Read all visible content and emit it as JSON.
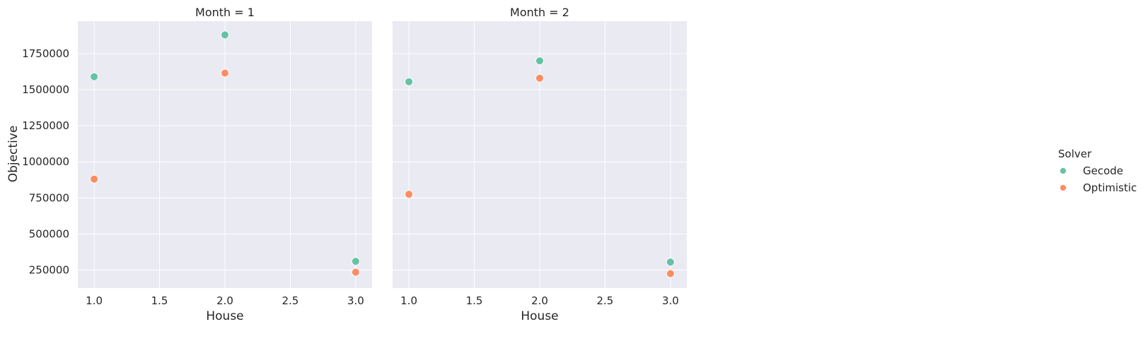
{
  "chart_data": {
    "type": "scatter",
    "facet_label": "Month",
    "xlabel": "House",
    "ylabel": "Objective",
    "xlim": [
      0.875,
      3.125
    ],
    "ylim": [
      125000,
      1975000
    ],
    "xticks": [
      "1.0",
      "1.5",
      "2.0",
      "2.5",
      "3.0"
    ],
    "xtick_values": [
      1.0,
      1.5,
      2.0,
      2.5,
      3.0
    ],
    "yticks": [
      "250000",
      "500000",
      "750000",
      "1000000",
      "1250000",
      "1500000",
      "1750000"
    ],
    "ytick_values": [
      250000,
      500000,
      750000,
      1000000,
      1250000,
      1500000,
      1750000
    ],
    "grid": true,
    "legend": {
      "title": "Solver",
      "placement": "right",
      "entries": [
        "Gecode",
        "Optimistic"
      ]
    },
    "colors": {
      "Gecode": "#66c2a5",
      "Optimistic": "#fc8d62",
      "panel_background": "#eaeaf2",
      "grid": "#ffffff"
    },
    "panels": [
      {
        "title": "Month = 1",
        "series": [
          {
            "name": "Gecode",
            "x": [
              1,
              2,
              3
            ],
            "y": [
              1590000,
              1880000,
              310000
            ]
          },
          {
            "name": "Optimistic",
            "x": [
              1,
              2,
              3
            ],
            "y": [
              880000,
              1615000,
              235000
            ]
          }
        ]
      },
      {
        "title": "Month = 2",
        "series": [
          {
            "name": "Gecode",
            "x": [
              1,
              2,
              3
            ],
            "y": [
              1555000,
              1700000,
              305000
            ]
          },
          {
            "name": "Optimistic",
            "x": [
              1,
              2,
              3
            ],
            "y": [
              775000,
              1580000,
              225000
            ]
          }
        ]
      }
    ]
  }
}
